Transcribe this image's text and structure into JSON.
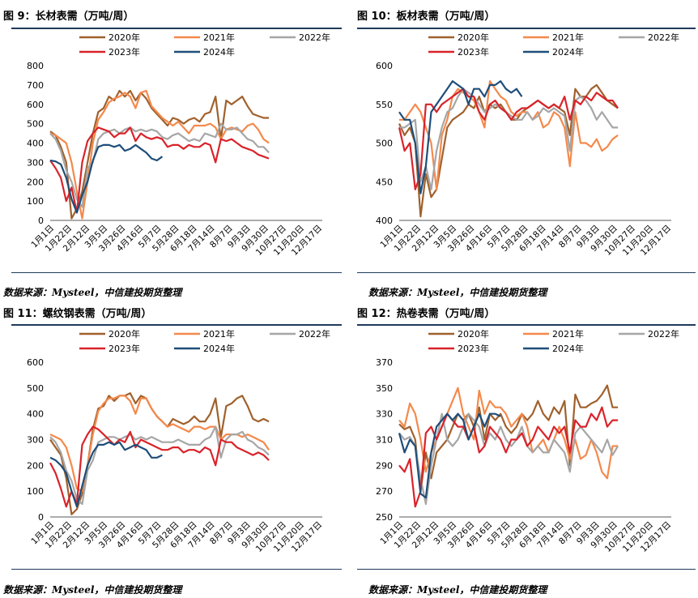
{
  "source_note": "数据来源：Mysteel，中信建投期货整理",
  "colors": {
    "2020年": "#a0612d",
    "2021年": "#f4894b",
    "2022年": "#a6a6a6",
    "2023年": "#d9232a",
    "2024年": "#1e4e79",
    "rule": "#1f3a5c"
  },
  "chart_data": [
    {
      "id": "fig9",
      "type": "line",
      "title": "图 9：长材表需（万吨/周）",
      "ylim": [
        0,
        800
      ],
      "yticks": [
        0,
        100,
        200,
        300,
        400,
        500,
        600,
        700,
        800
      ],
      "x_tick_labels": [
        "1月1日",
        "1月22日",
        "2月12日",
        "3月5日",
        "3月26日",
        "4月16日",
        "5月7日",
        "5月28日",
        "6月18日",
        "7月14日",
        "8月7日",
        "9月3日",
        "9月30日",
        "10月27日",
        "11月20日",
        "12月17日"
      ],
      "legend": [
        "2020年",
        "2021年",
        "2022年",
        "2023年",
        "2024年"
      ],
      "series": [
        {
          "name": "2020年",
          "values": [
            460,
            440,
            380,
            300,
            10,
            60,
            150,
            300,
            450,
            560,
            580,
            640,
            620,
            670,
            640,
            670,
            620,
            660,
            630,
            580,
            550,
            520,
            490,
            530,
            520,
            500,
            520,
            530,
            510,
            550,
            560,
            640,
            420,
            620,
            600,
            620,
            640,
            590,
            550,
            540,
            530,
            530
          ]
        },
        {
          "name": "2021年",
          "values": [
            450,
            440,
            420,
            400,
            300,
            150,
            10,
            200,
            400,
            520,
            560,
            610,
            630,
            640,
            660,
            640,
            580,
            660,
            670,
            590,
            560,
            530,
            510,
            490,
            510,
            480,
            450,
            490,
            490,
            490,
            500,
            480,
            420,
            470,
            480,
            470,
            460,
            490,
            500,
            470,
            420,
            400
          ]
        },
        {
          "name": "2022年",
          "values": [
            450,
            420,
            360,
            260,
            200,
            110,
            70,
            270,
            300,
            420,
            450,
            460,
            470,
            450,
            470,
            480,
            460,
            470,
            460,
            470,
            460,
            430,
            420,
            440,
            450,
            430,
            410,
            420,
            410,
            450,
            440,
            430,
            500,
            470,
            470,
            480,
            450,
            420,
            410,
            380,
            380,
            350
          ]
        },
        {
          "name": "2023年",
          "values": [
            310,
            270,
            220,
            100,
            170,
            40,
            300,
            410,
            450,
            480,
            470,
            460,
            430,
            450,
            450,
            480,
            410,
            450,
            430,
            420,
            430,
            420,
            380,
            390,
            390,
            370,
            390,
            380,
            380,
            400,
            390,
            300,
            420,
            410,
            420,
            400,
            380,
            370,
            360,
            340,
            330,
            320
          ]
        },
        {
          "name": "2024年",
          "values": [
            310,
            305,
            290,
            220,
            110,
            40,
            130,
            200,
            310,
            380,
            390,
            390,
            380,
            390,
            360,
            370,
            390,
            370,
            350,
            320,
            310,
            330
          ]
        }
      ]
    },
    {
      "id": "fig10",
      "type": "line",
      "title": "图 10：板材表需（万吨/周）",
      "ylim": [
        400,
        600
      ],
      "yticks": [
        400,
        450,
        500,
        550,
        600
      ],
      "x_tick_labels": [
        "1月1日",
        "1月22日",
        "2月12日",
        "3月5日",
        "3月26日",
        "4月16日",
        "5月7日",
        "5月28日",
        "6月18日",
        "7月14日",
        "8月7日",
        "9月3日",
        "9月30日",
        "10月27日",
        "11月20日",
        "12月17日"
      ],
      "legend": [
        "2020年",
        "2021年",
        "2022年",
        "2023年",
        "2024年"
      ],
      "series": [
        {
          "name": "2020年",
          "values": [
            525,
            510,
            520,
            500,
            405,
            460,
            430,
            440,
            480,
            520,
            530,
            535,
            540,
            550,
            545,
            560,
            540,
            550,
            545,
            550,
            540,
            530,
            530,
            540,
            545,
            550,
            555,
            550,
            545,
            550,
            545,
            540,
            510,
            570,
            560,
            560,
            570,
            575,
            565,
            555,
            550,
            545
          ]
        },
        {
          "name": "2021年",
          "values": [
            530,
            530,
            540,
            550,
            540,
            520,
            500,
            440,
            510,
            530,
            560,
            570,
            565,
            560,
            555,
            540,
            520,
            580,
            570,
            560,
            555,
            540,
            535,
            540,
            540,
            530,
            540,
            520,
            525,
            540,
            535,
            520,
            470,
            540,
            500,
            500,
            495,
            505,
            490,
            495,
            505,
            510
          ]
        },
        {
          "name": "2022年",
          "values": [
            520,
            520,
            525,
            530,
            450,
            470,
            440,
            490,
            520,
            540,
            545,
            560,
            570,
            565,
            560,
            550,
            540,
            545,
            550,
            545,
            540,
            535,
            530,
            530,
            540,
            530,
            535,
            545,
            540,
            545,
            540,
            535,
            490,
            555,
            560,
            555,
            545,
            530,
            540,
            530,
            520,
            520
          ]
        },
        {
          "name": "2023年",
          "values": [
            520,
            490,
            500,
            440,
            460,
            550,
            550,
            540,
            550,
            555,
            560,
            565,
            570,
            560,
            560,
            540,
            530,
            550,
            555,
            545,
            540,
            530,
            540,
            545,
            545,
            550,
            555,
            550,
            545,
            550,
            545,
            560,
            530,
            555,
            550,
            560,
            555,
            565,
            560,
            555,
            555,
            545
          ]
        },
        {
          "name": "2024年",
          "values": [
            540,
            530,
            530,
            500,
            435,
            470,
            540,
            550,
            560,
            570,
            580,
            575,
            570,
            550,
            570,
            570,
            560,
            575,
            575,
            580,
            570,
            565,
            570,
            560
          ]
        }
      ]
    },
    {
      "id": "fig11",
      "type": "line",
      "title": "图 11：螺纹钢表需（万吨/周）",
      "ylim": [
        0,
        600
      ],
      "yticks": [
        0,
        100,
        200,
        300,
        400,
        500,
        600
      ],
      "x_tick_labels": [
        "1月1日",
        "1月22日",
        "2月12日",
        "3月5日",
        "3月26日",
        "4月16日",
        "5月7日",
        "5月28日",
        "6月18日",
        "7月14日",
        "8月7日",
        "9月3日",
        "9月30日",
        "10月27日",
        "11月20日",
        "12月17日"
      ],
      "legend": [
        "2020年",
        "2021年",
        "2022年",
        "2023年",
        "2024年"
      ],
      "series": [
        {
          "name": "2020年",
          "values": [
            300,
            270,
            240,
            150,
            10,
            30,
            90,
            200,
            340,
            420,
            430,
            470,
            450,
            470,
            470,
            480,
            440,
            470,
            460,
            420,
            390,
            370,
            350,
            380,
            370,
            360,
            370,
            390,
            370,
            370,
            400,
            460,
            310,
            430,
            440,
            460,
            470,
            430,
            380,
            370,
            380,
            370
          ]
        },
        {
          "name": "2021年",
          "values": [
            320,
            310,
            300,
            270,
            200,
            110,
            100,
            200,
            320,
            410,
            440,
            460,
            460,
            470,
            470,
            450,
            400,
            460,
            460,
            420,
            390,
            370,
            350,
            360,
            350,
            340,
            330,
            350,
            350,
            340,
            350,
            350,
            300,
            320,
            320,
            320,
            310,
            320,
            310,
            300,
            290,
            260
          ]
        },
        {
          "name": "2022年",
          "values": [
            310,
            290,
            250,
            180,
            140,
            70,
            50,
            180,
            220,
            290,
            300,
            310,
            310,
            300,
            310,
            320,
            300,
            310,
            300,
            310,
            300,
            290,
            290,
            290,
            300,
            290,
            280,
            280,
            280,
            300,
            310,
            350,
            230,
            300,
            320,
            320,
            330,
            300,
            290,
            270,
            260,
            240
          ]
        },
        {
          "name": "2023年",
          "values": [
            210,
            170,
            110,
            40,
            100,
            50,
            280,
            320,
            350,
            340,
            320,
            300,
            280,
            300,
            290,
            330,
            270,
            300,
            290,
            280,
            270,
            260,
            260,
            270,
            270,
            250,
            260,
            260,
            250,
            270,
            260,
            200,
            300,
            290,
            290,
            270,
            260,
            250,
            240,
            250,
            240,
            220
          ]
        },
        {
          "name": "2024年",
          "values": [
            230,
            220,
            200,
            170,
            100,
            40,
            120,
            200,
            250,
            280,
            280,
            290,
            280,
            290,
            260,
            270,
            280,
            270,
            260,
            230,
            230,
            240
          ]
        }
      ]
    },
    {
      "id": "fig12",
      "type": "line",
      "title": "图 12：热卷表需（万吨/周）",
      "ylim": [
        250,
        370
      ],
      "yticks": [
        250,
        270,
        290,
        310,
        330,
        350,
        370
      ],
      "x_tick_labels": [
        "1月1日",
        "1月22日",
        "2月12日",
        "3月5日",
        "3月26日",
        "4月16日",
        "5月7日",
        "5月28日",
        "6月18日",
        "7月14日",
        "8月7日",
        "9月3日",
        "9月30日",
        "10月27日",
        "11月20日",
        "12月17日"
      ],
      "legend": [
        "2020年",
        "2021年",
        "2022年",
        "2023年",
        "2024年"
      ],
      "series": [
        {
          "name": "2020年",
          "values": [
            322,
            318,
            320,
            310,
            270,
            300,
            280,
            300,
            305,
            310,
            320,
            330,
            325,
            330,
            320,
            335,
            310,
            330,
            325,
            330,
            320,
            315,
            320,
            330,
            325,
            330,
            340,
            330,
            325,
            335,
            330,
            340,
            290,
            345,
            335,
            335,
            338,
            340,
            345,
            352,
            335,
            335
          ]
        },
        {
          "name": "2021年",
          "values": [
            325,
            320,
            338,
            330,
            310,
            285,
            300,
            310,
            320,
            330,
            340,
            350,
            330,
            320,
            310,
            348,
            330,
            340,
            335,
            335,
            330,
            320,
            325,
            330,
            320,
            300,
            305,
            310,
            300,
            310,
            320,
            310,
            295,
            310,
            295,
            298,
            310,
            300,
            285,
            280,
            305,
            305
          ]
        },
        {
          "name": "2022年",
          "values": [
            315,
            310,
            312,
            305,
            280,
            260,
            290,
            310,
            330,
            310,
            305,
            310,
            320,
            330,
            325,
            320,
            305,
            315,
            310,
            320,
            310,
            305,
            310,
            320,
            305,
            300,
            305,
            300,
            300,
            310,
            305,
            300,
            285,
            315,
            320,
            315,
            310,
            305,
            300,
            310,
            298,
            305
          ]
        },
        {
          "name": "2023年",
          "values": [
            290,
            285,
            295,
            258,
            270,
            315,
            320,
            310,
            320,
            330,
            325,
            320,
            320,
            310,
            320,
            300,
            305,
            320,
            315,
            310,
            300,
            310,
            310,
            315,
            305,
            310,
            320,
            315,
            310,
            320,
            315,
            320,
            300,
            325,
            320,
            320,
            330,
            325,
            335,
            320,
            325,
            325
          ]
        },
        {
          "name": "2024年",
          "values": [
            315,
            300,
            310,
            305,
            268,
            265,
            300,
            320,
            325,
            330,
            325,
            330,
            325,
            310,
            320,
            330,
            320,
            330,
            330,
            328
          ]
        }
      ]
    }
  ]
}
